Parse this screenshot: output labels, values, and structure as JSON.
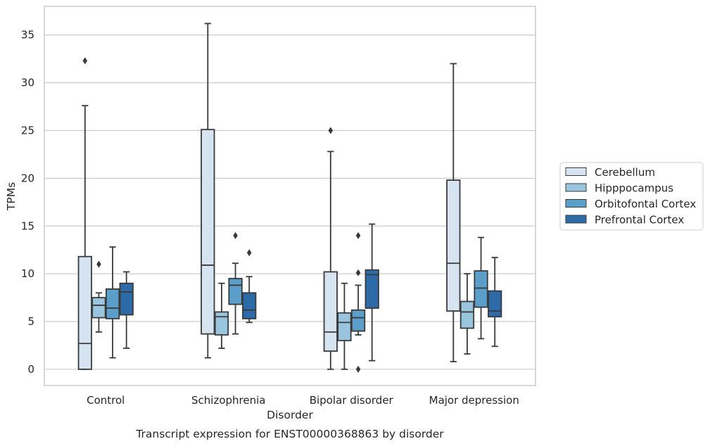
{
  "chart_data": {
    "type": "boxplot",
    "title": "",
    "caption": "Transcript expression for ENST00000368863 by disorder",
    "xlabel": "Disorder",
    "ylabel": "TPMs",
    "ylim": [
      -1.7,
      38
    ],
    "yticks": [
      0,
      5,
      10,
      15,
      20,
      25,
      30,
      35
    ],
    "ytick_labels": [
      "0",
      "5",
      "10",
      "15",
      "20",
      "25",
      "30",
      "35"
    ],
    "grid": "horizontal",
    "legend_position": "right",
    "categories": [
      "Control",
      "Schizophrenia",
      "Bipolar disorder",
      "Major depression"
    ],
    "series": [
      {
        "name": "Cerebellum",
        "color": "#d6e4f2",
        "boxes": [
          {
            "q1": 0.0,
            "median": 2.7,
            "q3": 11.8,
            "whisker_low": 0.0,
            "whisker_high": 27.6,
            "outliers": [
              32.3
            ]
          },
          {
            "q1": 3.7,
            "median": 10.9,
            "q3": 25.1,
            "whisker_low": 1.2,
            "whisker_high": 36.2,
            "outliers": []
          },
          {
            "q1": 1.9,
            "median": 3.9,
            "q3": 10.2,
            "whisker_low": 0.0,
            "whisker_high": 22.8,
            "outliers": [
              25.0
            ]
          },
          {
            "q1": 6.1,
            "median": 11.1,
            "q3": 19.8,
            "whisker_low": 0.8,
            "whisker_high": 32.0,
            "outliers": []
          }
        ]
      },
      {
        "name": "Hipppocampus",
        "color": "#9ac5de",
        "boxes": [
          {
            "q1": 5.4,
            "median": 6.7,
            "q3": 7.5,
            "whisker_low": 3.9,
            "whisker_high": 8.0,
            "outliers": [
              11.0
            ]
          },
          {
            "q1": 3.6,
            "median": 5.5,
            "q3": 6.0,
            "whisker_low": 2.2,
            "whisker_high": 9.0,
            "outliers": []
          },
          {
            "q1": 3.0,
            "median": 4.9,
            "q3": 5.9,
            "whisker_low": 0.0,
            "whisker_high": 9.0,
            "outliers": []
          },
          {
            "q1": 4.3,
            "median": 6.0,
            "q3": 7.1,
            "whisker_low": 1.6,
            "whisker_high": 10.0,
            "outliers": []
          }
        ]
      },
      {
        "name": "Orbitofontal Cortex",
        "color": "#5b9ec9",
        "boxes": [
          {
            "q1": 5.3,
            "median": 6.4,
            "q3": 8.4,
            "whisker_low": 1.2,
            "whisker_high": 12.8,
            "outliers": []
          },
          {
            "q1": 6.8,
            "median": 8.8,
            "q3": 9.5,
            "whisker_low": 3.7,
            "whisker_high": 11.1,
            "outliers": [
              14.0
            ]
          },
          {
            "q1": 4.0,
            "median": 5.4,
            "q3": 6.2,
            "whisker_low": 3.6,
            "whisker_high": 8.8,
            "outliers": [
              14.0,
              10.1,
              0.0
            ]
          },
          {
            "q1": 6.5,
            "median": 8.5,
            "q3": 10.3,
            "whisker_low": 3.2,
            "whisker_high": 13.8,
            "outliers": []
          }
        ]
      },
      {
        "name": "Prefrontal Cortex",
        "color": "#2c6aa8",
        "boxes": [
          {
            "q1": 5.7,
            "median": 8.1,
            "q3": 9.0,
            "whisker_low": 2.2,
            "whisker_high": 10.2,
            "outliers": []
          },
          {
            "q1": 5.3,
            "median": 6.2,
            "q3": 8.0,
            "whisker_low": 4.9,
            "whisker_high": 9.7,
            "outliers": [
              12.2
            ]
          },
          {
            "q1": 6.4,
            "median": 9.9,
            "q3": 10.4,
            "whisker_low": 0.9,
            "whisker_high": 15.2,
            "outliers": []
          },
          {
            "q1": 5.5,
            "median": 6.1,
            "q3": 8.2,
            "whisker_low": 2.4,
            "whisker_high": 11.7,
            "outliers": []
          }
        ]
      }
    ]
  }
}
